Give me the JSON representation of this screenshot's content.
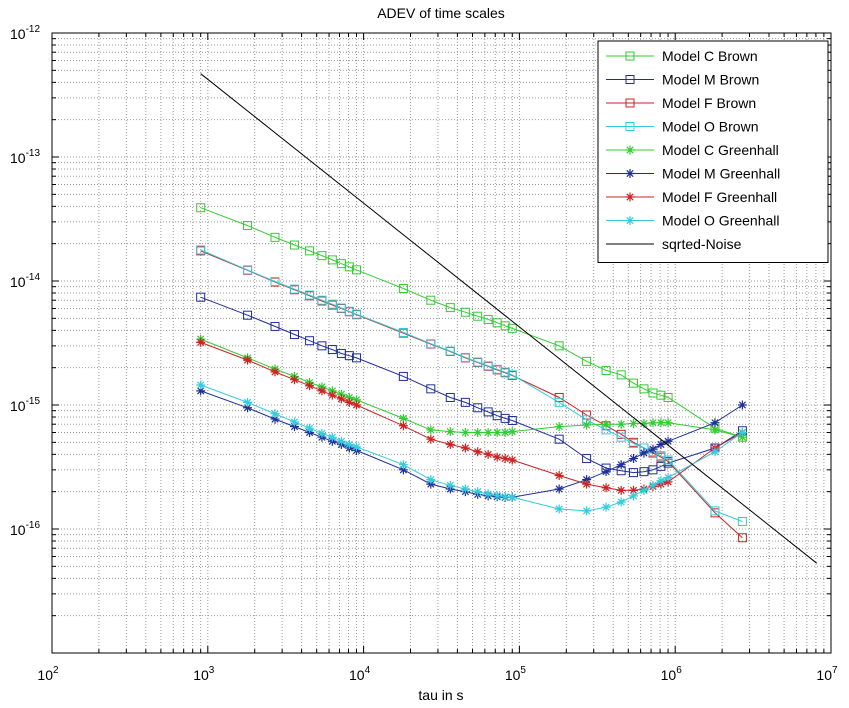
{
  "chart_data": {
    "type": "line",
    "title": "ADEV of time scales",
    "xlabel": "tau in s",
    "ylabel": "",
    "xscale": "log",
    "yscale": "log",
    "xlim": [
      100,
      10000000
    ],
    "ylim": [
      1e-17,
      1e-12
    ],
    "x_ticks": [
      {
        "base": "10",
        "exp": "2",
        "value": 100
      },
      {
        "base": "10",
        "exp": "3",
        "value": 1000
      },
      {
        "base": "10",
        "exp": "4",
        "value": 10000
      },
      {
        "base": "10",
        "exp": "5",
        "value": 100000
      },
      {
        "base": "10",
        "exp": "6",
        "value": 1000000
      },
      {
        "base": "10",
        "exp": "7",
        "value": 10000000
      }
    ],
    "y_ticks": [
      {
        "base": "10",
        "exp": "-12",
        "value": 1e-12
      },
      {
        "base": "10",
        "exp": "-13",
        "value": 1e-13
      },
      {
        "base": "10",
        "exp": "-14",
        "value": 1e-14
      },
      {
        "base": "10",
        "exp": "-15",
        "value": 1e-15
      },
      {
        "base": "10",
        "exp": "-16",
        "value": 1e-16
      }
    ],
    "grid": true,
    "legend_position": "top-right",
    "series": [
      {
        "name": "Model C Brown",
        "color": "#33cc33",
        "marker": "square",
        "x": [
          900,
          1800,
          2700,
          3600,
          4500,
          5400,
          6300,
          7200,
          8100,
          9000,
          18000,
          27000,
          36000,
          45000,
          54000,
          63000,
          72000,
          81000,
          90000,
          180000,
          270000,
          360000,
          450000,
          540000,
          630000,
          720000,
          810000,
          900000,
          1800000,
          2700000
        ],
        "y": [
          3.9e-14,
          2.8e-14,
          2.25e-14,
          1.95e-14,
          1.75e-14,
          1.6e-14,
          1.48e-14,
          1.38e-14,
          1.3e-14,
          1.23e-14,
          8.7e-15,
          7e-15,
          6.1e-15,
          5.6e-15,
          5.2e-15,
          4.9e-15,
          4.6e-15,
          4.35e-15,
          4.15e-15,
          3e-15,
          2.25e-15,
          1.9e-15,
          1.75e-15,
          1.5e-15,
          1.35e-15,
          1.25e-15,
          1.2e-15,
          1.15e-15,
          6.5e-16,
          5.5e-16
        ]
      },
      {
        "name": "Model M Brown",
        "color": "#1f2f99",
        "marker": "square",
        "x": [
          900,
          1800,
          2700,
          3600,
          4500,
          5400,
          6300,
          7200,
          8100,
          9000,
          18000,
          27000,
          36000,
          45000,
          54000,
          63000,
          72000,
          81000,
          90000,
          180000,
          270000,
          360000,
          450000,
          540000,
          630000,
          720000,
          810000,
          900000,
          1800000,
          2700000
        ],
        "y": [
          7.4e-15,
          5.3e-15,
          4.3e-15,
          3.7e-15,
          3.3e-15,
          3e-15,
          2.8e-15,
          2.6e-15,
          2.5e-15,
          2.4e-15,
          1.7e-15,
          1.35e-15,
          1.15e-15,
          1.05e-15,
          9.5e-16,
          8.8e-16,
          8.2e-16,
          7.8e-16,
          7.5e-16,
          5.3e-16,
          3.7e-16,
          3.1e-16,
          2.95e-16,
          2.85e-16,
          2.9e-16,
          3e-16,
          3.2e-16,
          3.4e-16,
          4.5e-16,
          6.2e-16
        ]
      },
      {
        "name": "Model F Brown",
        "color": "#cc2222",
        "marker": "square",
        "x": [
          900,
          1800,
          2700,
          3600,
          4500,
          5400,
          6300,
          7200,
          8100,
          9000,
          18000,
          27000,
          36000,
          45000,
          54000,
          63000,
          72000,
          81000,
          90000,
          180000,
          270000,
          360000,
          450000,
          540000,
          630000,
          720000,
          810000,
          900000,
          1800000,
          2700000
        ],
        "y": [
          1.75e-14,
          1.22e-14,
          9.8e-15,
          8.5e-15,
          7.6e-15,
          6.9e-15,
          6.4e-15,
          6e-15,
          5.65e-15,
          5.35e-15,
          3.8e-15,
          3.1e-15,
          2.7e-15,
          2.4e-15,
          2.2e-15,
          2.05e-15,
          1.92e-15,
          1.82e-15,
          1.73e-15,
          1.15e-15,
          8.3e-16,
          6.8e-16,
          5.8e-16,
          5e-16,
          4.5e-16,
          4.1e-16,
          3.8e-16,
          3.5e-16,
          1.35e-16,
          8.5e-17
        ]
      },
      {
        "name": "Model O Brown",
        "color": "#33ccdd",
        "marker": "square",
        "x": [
          900,
          1800,
          2700,
          3600,
          4500,
          5400,
          6300,
          7200,
          8100,
          9000,
          18000,
          27000,
          36000,
          45000,
          54000,
          63000,
          72000,
          81000,
          90000,
          180000,
          270000,
          360000,
          450000,
          540000,
          630000,
          720000,
          810000,
          900000,
          1800000,
          2700000
        ],
        "y": [
          1.78e-14,
          1.23e-14,
          9.9e-15,
          8.6e-15,
          7.7e-15,
          7e-15,
          6.5e-15,
          6.05e-15,
          5.7e-15,
          5.4e-15,
          3.85e-15,
          3.12e-15,
          2.72e-15,
          2.42e-15,
          2.22e-15,
          2.07e-15,
          1.94e-15,
          1.84e-15,
          1.75e-15,
          1.05e-15,
          7.6e-16,
          6.3e-16,
          5.5e-16,
          4.9e-16,
          4.5e-16,
          4.2e-16,
          3.9e-16,
          3.6e-16,
          1.4e-16,
          1.15e-16
        ]
      },
      {
        "name": "Model C Greenhall",
        "color": "#33cc33",
        "marker": "star",
        "x": [
          900,
          1800,
          2700,
          3600,
          4500,
          5400,
          6300,
          7200,
          8100,
          9000,
          18000,
          27000,
          36000,
          45000,
          54000,
          63000,
          72000,
          81000,
          90000,
          180000,
          270000,
          360000,
          450000,
          540000,
          630000,
          720000,
          810000,
          900000,
          1800000,
          2700000
        ],
        "y": [
          3.4e-15,
          2.4e-15,
          1.95e-15,
          1.7e-15,
          1.52e-15,
          1.4e-15,
          1.3e-15,
          1.22e-15,
          1.15e-15,
          1.1e-15,
          7.8e-16,
          6.3e-16,
          6.1e-16,
          6e-16,
          6e-16,
          6e-16,
          6e-16,
          6e-16,
          6.1e-16,
          6.7e-16,
          6.9e-16,
          7e-16,
          7e-16,
          7.1e-16,
          7.1e-16,
          7.2e-16,
          7.2e-16,
          7.2e-16,
          6.3e-16,
          5.5e-16
        ]
      },
      {
        "name": "Model M Greenhall",
        "color": "#1f2f99",
        "marker": "star",
        "x": [
          900,
          1800,
          2700,
          3600,
          4500,
          5400,
          6300,
          7200,
          8100,
          9000,
          18000,
          27000,
          36000,
          45000,
          54000,
          63000,
          72000,
          81000,
          90000,
          180000,
          270000,
          360000,
          450000,
          540000,
          630000,
          720000,
          810000,
          900000,
          1800000,
          2700000
        ],
        "y": [
          1.3e-15,
          9.5e-16,
          7.7e-16,
          6.7e-16,
          6e-16,
          5.5e-16,
          5.1e-16,
          4.8e-16,
          4.5e-16,
          4.3e-16,
          3e-16,
          2.3e-16,
          2.1e-16,
          2e-16,
          1.9e-16,
          1.85e-16,
          1.82e-16,
          1.8e-16,
          1.8e-16,
          2.1e-16,
          2.5e-16,
          2.9e-16,
          3.3e-16,
          3.7e-16,
          4.1e-16,
          4.4e-16,
          4.8e-16,
          5.1e-16,
          7.2e-16,
          1e-15
        ]
      },
      {
        "name": "Model F Greenhall",
        "color": "#cc2222",
        "marker": "star",
        "x": [
          900,
          1800,
          2700,
          3600,
          4500,
          5400,
          6300,
          7200,
          8100,
          9000,
          18000,
          27000,
          36000,
          45000,
          54000,
          63000,
          72000,
          81000,
          90000,
          180000,
          270000,
          360000,
          450000,
          540000,
          630000,
          720000,
          810000,
          900000,
          1800000,
          2700000
        ],
        "y": [
          3.2e-15,
          2.3e-15,
          1.85e-15,
          1.6e-15,
          1.43e-15,
          1.3e-15,
          1.2e-15,
          1.12e-15,
          1.05e-15,
          1e-15,
          6.8e-16,
          5.3e-16,
          4.8e-16,
          4.5e-16,
          4.2e-16,
          4e-16,
          3.8e-16,
          3.7e-16,
          3.6e-16,
          2.7e-16,
          2.3e-16,
          2.15e-16,
          2.05e-16,
          2.05e-16,
          2.1e-16,
          2.2e-16,
          2.3e-16,
          2.4e-16,
          4.5e-16,
          6e-16
        ]
      },
      {
        "name": "Model O Greenhall",
        "color": "#33ccdd",
        "marker": "star",
        "x": [
          900,
          1800,
          2700,
          3600,
          4500,
          5400,
          6300,
          7200,
          8100,
          9000,
          18000,
          27000,
          36000,
          45000,
          54000,
          63000,
          72000,
          81000,
          90000,
          180000,
          270000,
          360000,
          450000,
          540000,
          630000,
          720000,
          810000,
          900000,
          1800000,
          2700000
        ],
        "y": [
          1.45e-15,
          1.05e-15,
          8.5e-16,
          7.3e-16,
          6.5e-16,
          5.9e-16,
          5.5e-16,
          5.1e-16,
          4.8e-16,
          4.6e-16,
          3.3e-16,
          2.5e-16,
          2.25e-16,
          2.1e-16,
          2e-16,
          1.92e-16,
          1.86e-16,
          1.82e-16,
          1.8e-16,
          1.45e-16,
          1.4e-16,
          1.5e-16,
          1.65e-16,
          1.85e-16,
          2.05e-16,
          2.25e-16,
          2.45e-16,
          2.6e-16,
          4.2e-16,
          6e-16
        ]
      },
      {
        "name": "sqrted-Noise",
        "color": "#000000",
        "marker": "none",
        "x": [
          900,
          8100000
        ],
        "y": [
          4.7e-13,
          5.3e-17
        ]
      }
    ]
  }
}
